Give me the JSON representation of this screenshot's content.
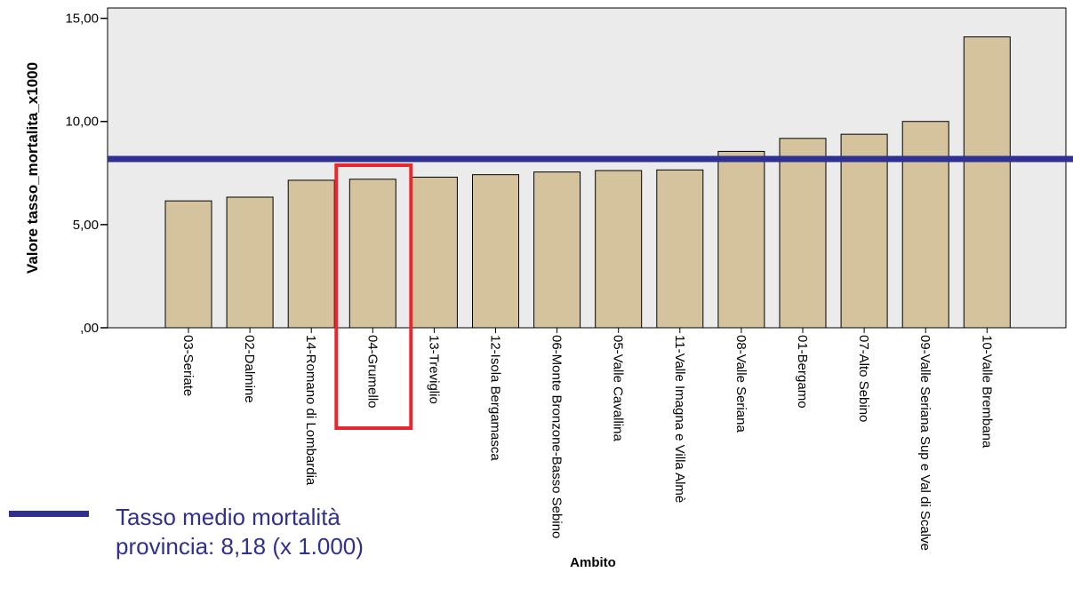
{
  "chart_data": {
    "type": "bar",
    "ylabel": "Valore tasso_mortalita_x1000",
    "xlabel": "Ambito",
    "ylim": [
      0,
      15.5
    ],
    "yticks": [
      {
        "value": 0,
        "label": ",00"
      },
      {
        "value": 5,
        "label": "5,00"
      },
      {
        "value": 10,
        "label": "10,00"
      },
      {
        "value": 15,
        "label": "15,00"
      }
    ],
    "categories": [
      "03-Seriate",
      "02-Dalmine",
      "14-Romano di Lombardia",
      "04-Grumello",
      "13-Treviglio",
      "12-Isola Bergamasca",
      "06-Monte Bronzone-Basso Sebino",
      "05-Valle Cavallina",
      "11-Valle Imagna e Villa Almè",
      "08-Valle Seriana",
      "01-Bergamo",
      "07-Alto Sebino",
      "09-Valle Seriana Sup e Val di Scalve",
      "10-Valle Brembana"
    ],
    "values": [
      6.15,
      6.33,
      7.15,
      7.2,
      7.3,
      7.42,
      7.55,
      7.62,
      7.65,
      8.55,
      9.18,
      9.38,
      10.0,
      14.1
    ],
    "reference_line": {
      "value": 8.18,
      "color": "#2e3192"
    },
    "highlighted_category": "04-Grumello",
    "highlight_color": "#e8282e",
    "bar_color": "#d5c39e",
    "plot_background": "#ebebeb",
    "grid": false
  },
  "legend": {
    "text": "Tasso medio mortalità provincia: 8,18 (x 1.000)",
    "color": "#2e3192"
  }
}
